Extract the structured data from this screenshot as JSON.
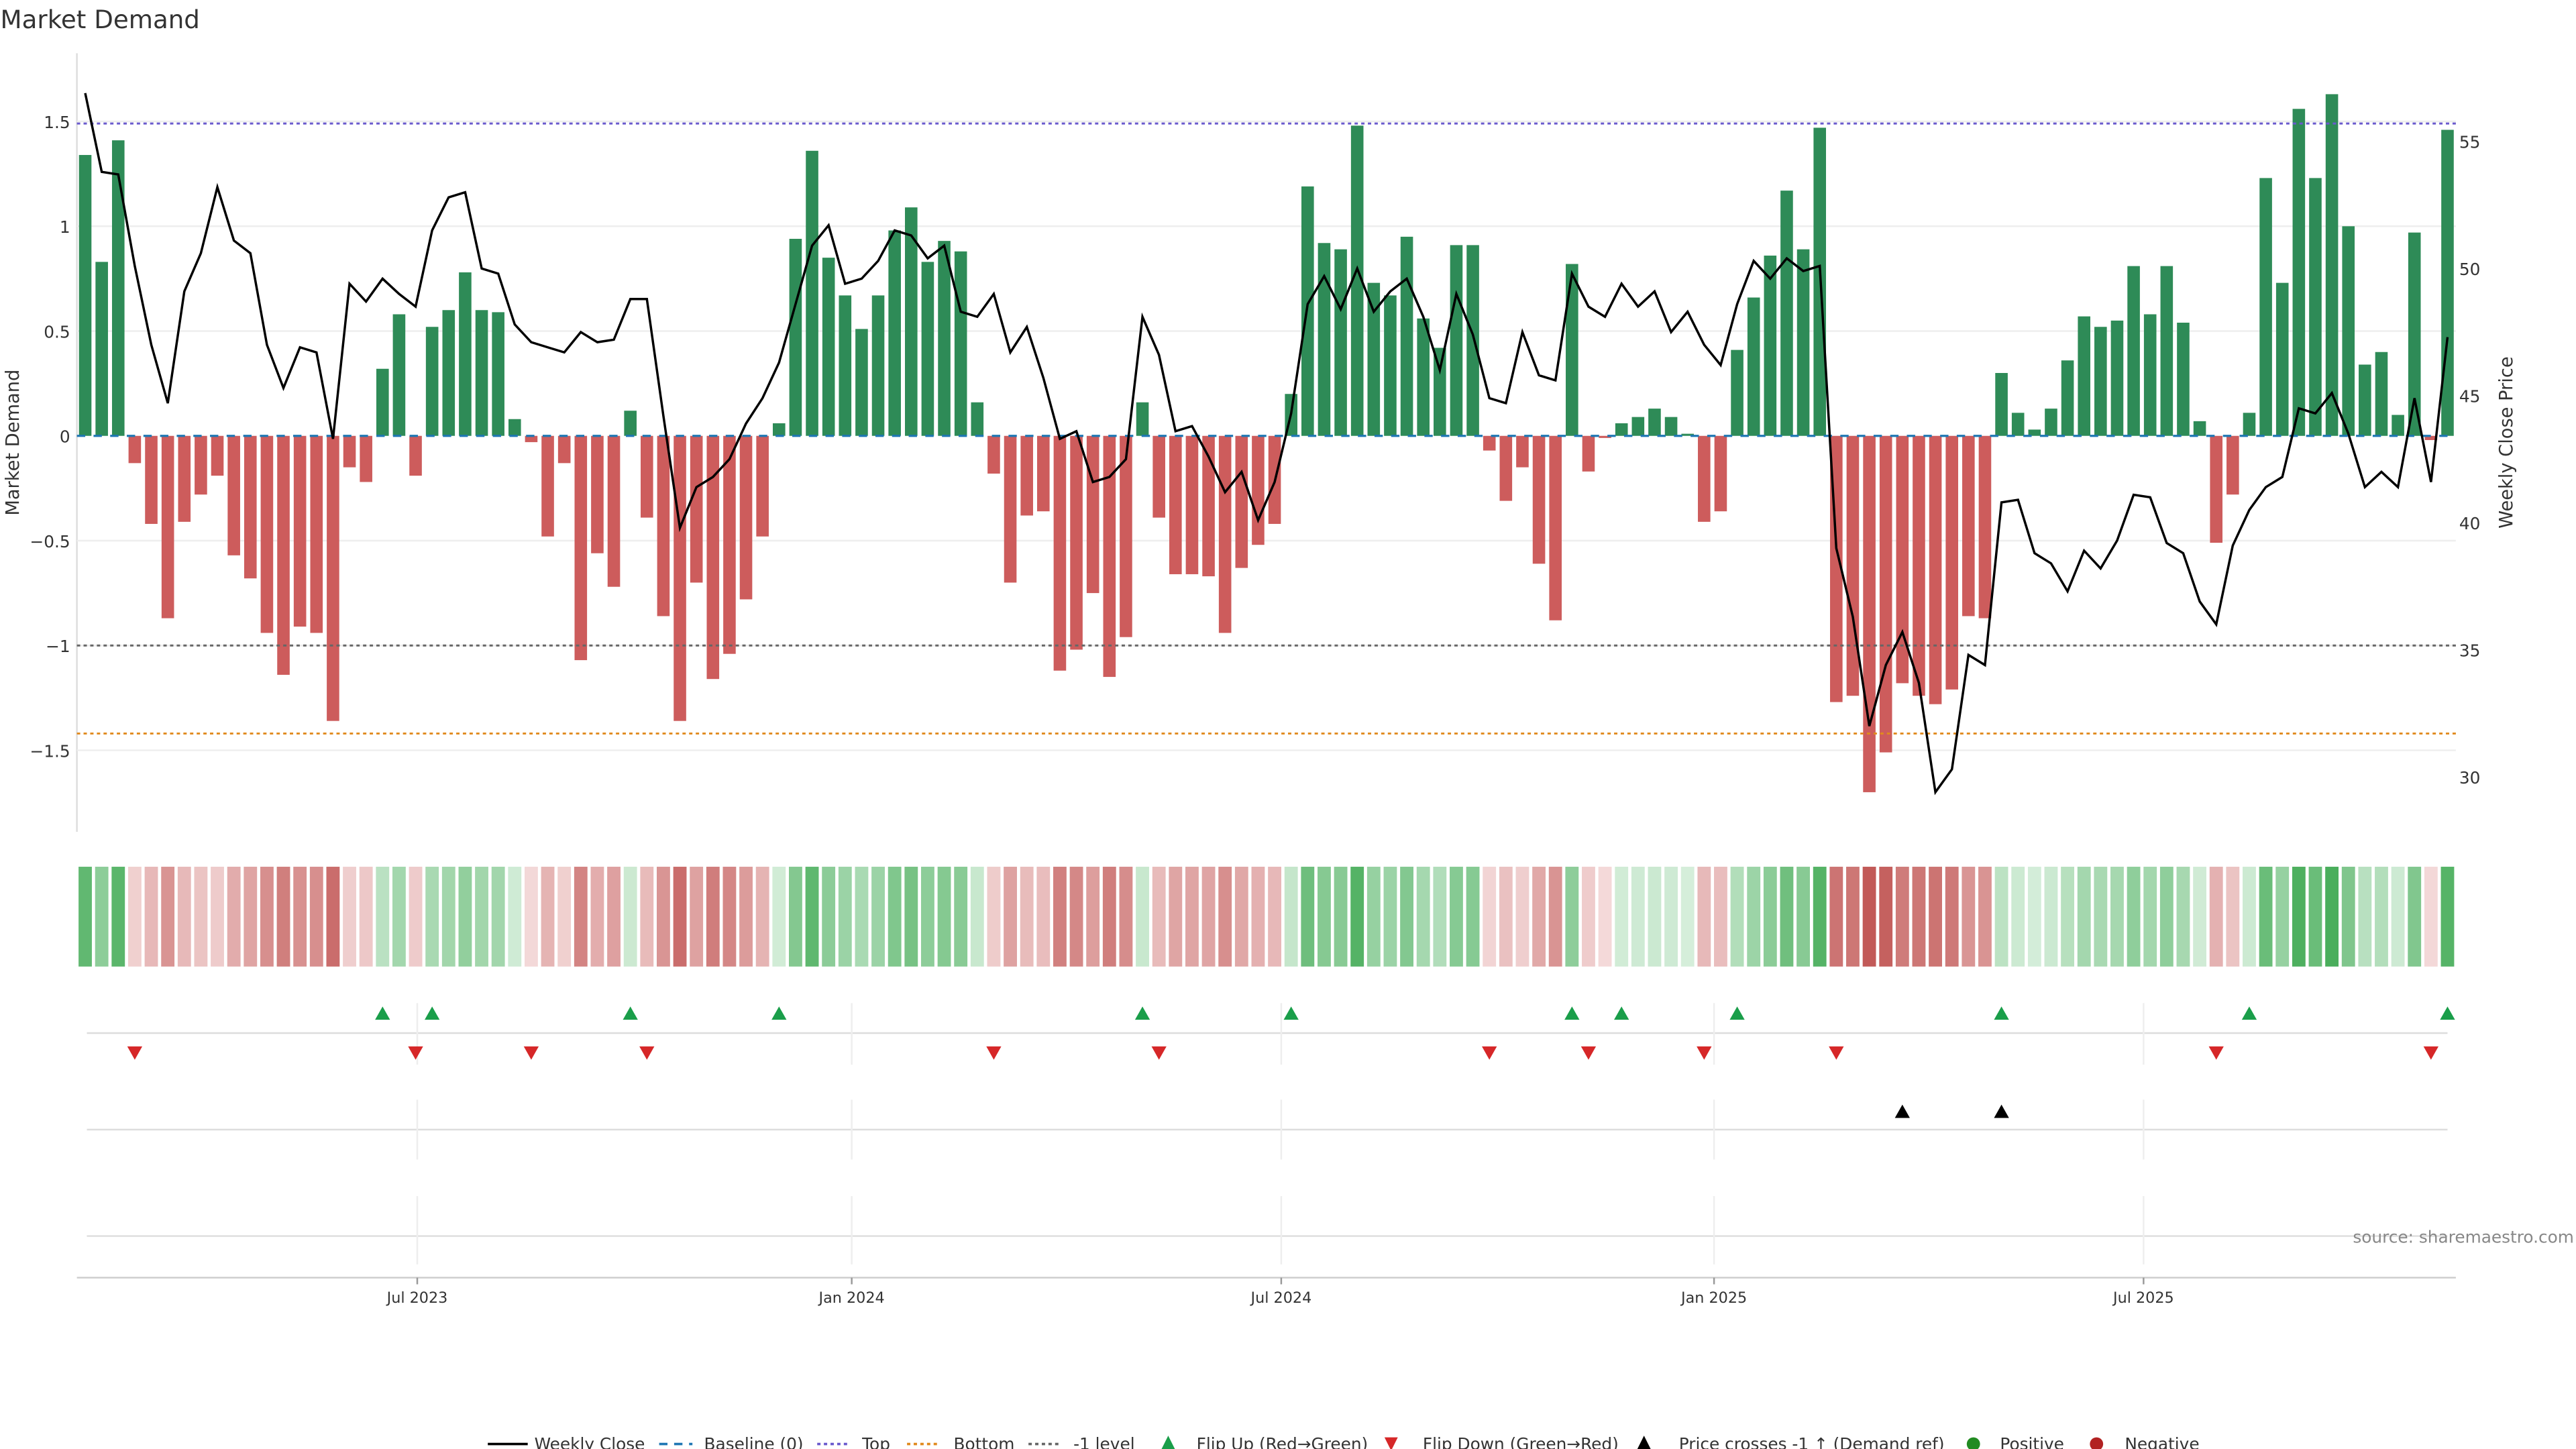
{
  "chart_data": {
    "type": "bar",
    "title": "Market Demand",
    "ylabel": "Market Demand",
    "y2label": "Weekly Close Price",
    "ylim": [
      -1.9,
      1.8
    ],
    "y2lim": [
      28,
      57.5
    ],
    "yticks": [
      1.5,
      1,
      0.5,
      0,
      -0.5,
      -1,
      -1.5
    ],
    "yticklabels": [
      "1.5",
      "1",
      "0.5",
      "0",
      "−0.5",
      "−1",
      "−1.5"
    ],
    "y2ticks": [
      55,
      50,
      45,
      40,
      35,
      30
    ],
    "xtick_week_index": [
      20.1,
      46.4,
      72.4,
      98.6,
      124.6
    ],
    "xticklabels": [
      "Jul 2023",
      "Jan 2024",
      "Jul 2024",
      "Jan 2025",
      "Jul 2025"
    ],
    "reference_lines": {
      "top": 1.49,
      "bottom": -1.42,
      "minus_one": -1,
      "baseline": 0
    },
    "demand": [
      1.34,
      0.83,
      1.41,
      -0.13,
      -0.42,
      -0.87,
      -0.41,
      -0.28,
      -0.19,
      -0.57,
      -0.68,
      -0.94,
      -1.14,
      -0.91,
      -0.94,
      -1.36,
      -0.15,
      -0.22,
      0.32,
      0.58,
      -0.19,
      0.52,
      0.6,
      0.78,
      0.6,
      0.59,
      0.08,
      -0.03,
      -0.48,
      -0.13,
      -1.07,
      -0.56,
      -0.72,
      0.12,
      -0.39,
      -0.86,
      -1.36,
      -0.7,
      -1.16,
      -1.04,
      -0.78,
      -0.48,
      0.06,
      0.94,
      1.36,
      0.85,
      0.67,
      0.51,
      0.67,
      0.98,
      1.09,
      0.83,
      0.93,
      0.88,
      0.16,
      -0.18,
      -0.7,
      -0.38,
      -0.36,
      -1.12,
      -1.02,
      -0.75,
      -1.15,
      -0.96,
      0.16,
      -0.39,
      -0.66,
      -0.66,
      -0.67,
      -0.94,
      -0.63,
      -0.52,
      -0.42,
      0.2,
      1.19,
      0.92,
      0.89,
      1.48,
      0.73,
      0.67,
      0.95,
      0.56,
      0.42,
      0.91,
      0.91,
      -0.07,
      -0.31,
      -0.15,
      -0.61,
      -0.88,
      0.82,
      -0.17,
      -0.01,
      0.06,
      0.09,
      0.13,
      0.09,
      0.01,
      -0.41,
      -0.36,
      0.41,
      0.66,
      0.86,
      1.17,
      0.89,
      1.47,
      -1.27,
      -1.24,
      -1.7,
      -1.51,
      -1.18,
      -1.24,
      -1.28,
      -1.21,
      -0.86,
      -0.87,
      0.3,
      0.11,
      0.03,
      0.13,
      0.36,
      0.57,
      0.52,
      0.55,
      0.81,
      0.58,
      0.81,
      0.54,
      0.07,
      -0.51,
      -0.28,
      0.11,
      1.23,
      0.73,
      1.56,
      1.23,
      1.63,
      1.0,
      0.34,
      0.4,
      0.1,
      0.97,
      -0.02,
      1.46
    ],
    "weekly_close": [
      56.9,
      53.8,
      53.7,
      50.1,
      47.0,
      44.7,
      49.1,
      50.6,
      53.2,
      51.1,
      50.6,
      47.0,
      45.3,
      46.9,
      46.7,
      43.3,
      49.4,
      48.7,
      49.6,
      49.0,
      48.5,
      51.5,
      52.8,
      53.0,
      50.0,
      49.8,
      47.8,
      47.1,
      46.9,
      46.7,
      47.5,
      47.1,
      47.2,
      48.8,
      48.8,
      44.2,
      39.8,
      41.4,
      41.8,
      42.5,
      43.9,
      44.9,
      46.3,
      48.6,
      50.9,
      51.7,
      49.4,
      49.6,
      50.3,
      51.5,
      51.3,
      50.4,
      50.9,
      48.3,
      48.1,
      49.0,
      46.7,
      47.7,
      45.7,
      43.3,
      43.6,
      41.6,
      41.8,
      42.5,
      48.1,
      46.6,
      43.6,
      43.8,
      42.6,
      41.2,
      42.0,
      40.1,
      41.6,
      44.3,
      48.6,
      49.7,
      48.4,
      50.0,
      48.3,
      49.1,
      49.6,
      48.1,
      46.0,
      49.0,
      47.4,
      44.9,
      44.7,
      47.5,
      45.8,
      45.6,
      49.8,
      48.5,
      48.1,
      49.4,
      48.5,
      49.1,
      47.5,
      48.3,
      47.0,
      46.2,
      48.6,
      50.3,
      49.6,
      50.4,
      49.9,
      50.1,
      39.0,
      36.3,
      32.0,
      34.4,
      35.7,
      33.7,
      29.4,
      30.3,
      34.8,
      34.4,
      40.8,
      40.9,
      38.8,
      38.4,
      37.3,
      38.9,
      38.2,
      39.3,
      41.1,
      41.0,
      39.2,
      38.8,
      36.9,
      36.0,
      39.1,
      40.5,
      41.4,
      41.8,
      44.5,
      44.3,
      45.1,
      43.5,
      41.4,
      42.0,
      41.4,
      44.9,
      41.6,
      47.3
    ],
    "price_cross_up_week_index": [
      110,
      116
    ],
    "legend": {
      "placement": "bottom-center",
      "items": [
        "Weekly Close",
        "Baseline (0)",
        "Top",
        "Bottom",
        "-1 level",
        "Flip Up (Red→Green)",
        "Flip Down (Green→Red)",
        "Price crosses -1 ↑ (Demand ref)",
        "Positive",
        "Negative"
      ]
    },
    "source": "source: sharemaestro.com"
  },
  "colors": {
    "positive": "#2e8b57",
    "negative": "#cd5c5c",
    "flip_up": "#1a9e4a",
    "flip_down": "#d62728",
    "top": "#6a5acd",
    "bottom": "#e08a1e",
    "minus_one": "#666666",
    "baseline": "#1f77b4",
    "legend_positive": "#228b22",
    "legend_negative": "#b22222"
  }
}
